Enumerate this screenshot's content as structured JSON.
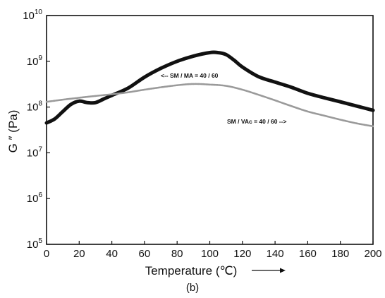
{
  "chart_data": {
    "type": "line",
    "xlabel": "Temperature (℃)",
    "ylabel": "G ″ (Pa)",
    "caption": "(b)",
    "x_ticks": [
      "0",
      "20",
      "40",
      "60",
      "80",
      "100",
      "120",
      "140",
      "160",
      "180",
      "200"
    ],
    "y_ticks": [
      {
        "base": "10",
        "exp": "5"
      },
      {
        "base": "10",
        "exp": "6"
      },
      {
        "base": "10",
        "exp": "7"
      },
      {
        "base": "10",
        "exp": "8"
      },
      {
        "base": "10",
        "exp": "9"
      },
      {
        "base": "10",
        "exp": "10"
      }
    ],
    "xlim": [
      0,
      200
    ],
    "ylim": [
      100000,
      10000000000
    ],
    "yscale": "log",
    "grid": false,
    "series": [
      {
        "name": "<-- SM / MA = 40 / 60",
        "color": "#111111",
        "style": "thick",
        "x": [
          0,
          5,
          10,
          15,
          20,
          25,
          30,
          35,
          40,
          50,
          60,
          70,
          80,
          90,
          100,
          105,
          110,
          115,
          120,
          130,
          140,
          150,
          160,
          170,
          180,
          190,
          200
        ],
        "y": [
          45000000.0,
          55000000.0,
          80000000.0,
          115000000.0,
          135000000.0,
          125000000.0,
          125000000.0,
          150000000.0,
          180000000.0,
          260000000.0,
          450000000.0,
          700000000.0,
          1000000000.0,
          1300000000.0,
          1550000000.0,
          1550000000.0,
          1400000000.0,
          1050000000.0,
          750000000.0,
          460000000.0,
          350000000.0,
          270000000.0,
          200000000.0,
          160000000.0,
          130000000.0,
          105000000.0,
          85000000.0
        ]
      },
      {
        "name": "SM / VAc = 40 / 60 -->",
        "color": "#9a9a9a",
        "style": "thin",
        "x": [
          0,
          10,
          20,
          30,
          40,
          50,
          60,
          70,
          80,
          90,
          100,
          110,
          120,
          130,
          140,
          150,
          160,
          170,
          180,
          190,
          200
        ],
        "y": [
          130000000.0,
          145000000.0,
          160000000.0,
          175000000.0,
          190000000.0,
          210000000.0,
          240000000.0,
          270000000.0,
          300000000.0,
          320000000.0,
          310000000.0,
          290000000.0,
          240000000.0,
          185000000.0,
          140000000.0,
          105000000.0,
          80000000.0,
          65000000.0,
          53000000.0,
          44000000.0,
          38000000.0
        ]
      }
    ]
  }
}
